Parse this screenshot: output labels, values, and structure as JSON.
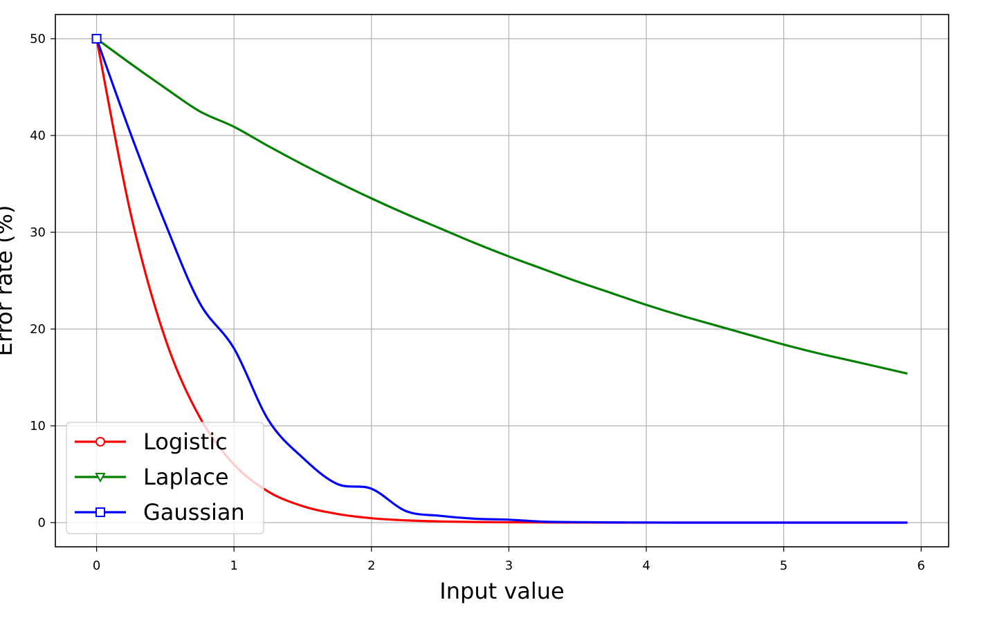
{
  "chart_data": {
    "type": "line",
    "title": "",
    "xlabel": "Input value",
    "ylabel": "Error rate (%)",
    "xlim": [
      -0.3,
      6.2
    ],
    "ylim": [
      -2.5,
      52.5
    ],
    "xticks": [
      0,
      1,
      2,
      3,
      4,
      5,
      6
    ],
    "yticks": [
      0,
      10,
      20,
      30,
      40,
      50
    ],
    "grid": true,
    "legend_position": "lower left",
    "x": [
      0,
      0.25,
      0.5,
      0.75,
      1,
      1.25,
      1.5,
      1.75,
      2,
      2.25,
      2.5,
      2.75,
      3,
      3.25,
      3.5,
      3.75,
      4,
      4.25,
      4.5,
      4.75,
      5,
      5.25,
      5.5,
      5.9
    ],
    "series": [
      {
        "name": "Logistic",
        "color": "#ff0000",
        "marker": "circle",
        "values": [
          50,
          31.8,
          19.0,
          10.9,
          6.0,
          3.2,
          1.7,
          0.9,
          0.45,
          0.23,
          0.12,
          0.06,
          0.03,
          0.02,
          0.01,
          0.0,
          0.0,
          0.0,
          0.0,
          0.0,
          0.0,
          0.0,
          0.0,
          0.0
        ]
      },
      {
        "name": "Laplace",
        "color": "#008000",
        "marker": "triangle-down",
        "values": [
          50,
          47.4,
          44.9,
          42.5,
          40.9,
          38.9,
          37.0,
          35.2,
          33.5,
          31.9,
          30.4,
          28.9,
          27.5,
          26.2,
          24.9,
          23.7,
          22.5,
          21.4,
          20.4,
          19.4,
          18.4,
          17.5,
          16.7,
          15.4
        ]
      },
      {
        "name": "Gaussian",
        "color": "#0000ff",
        "marker": "square",
        "values": [
          50,
          40.1,
          30.9,
          22.7,
          18.0,
          10.6,
          6.7,
          4.0,
          3.5,
          1.2,
          0.7,
          0.4,
          0.3,
          0.1,
          0.05,
          0.02,
          0.01,
          0.0,
          0.0,
          0.0,
          0.0,
          0.0,
          0.0,
          0.0
        ]
      }
    ]
  }
}
